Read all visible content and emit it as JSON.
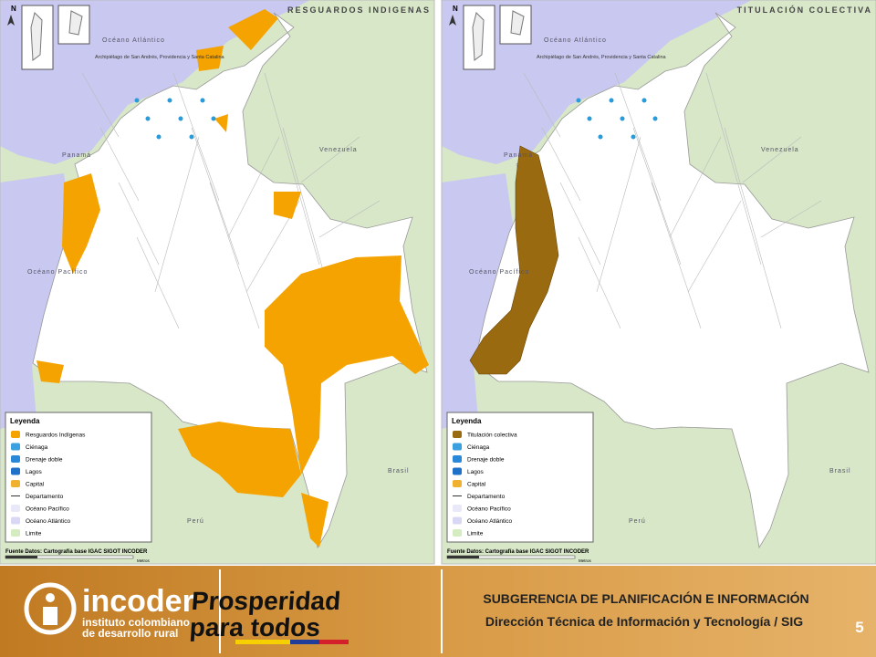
{
  "maps": [
    {
      "title": "RESGUARDOS INDIGENAS",
      "north": "N",
      "inset_caption": "Archipiélago de San Andrés, Providencia y Santa Catalina",
      "labels": [
        "Océano Atlántico",
        "Venezuela",
        "Panamá",
        "Océano Pacífico",
        "Brasil",
        "Perú"
      ],
      "legend": {
        "title": "Leyenda",
        "items": [
          "Resguardos Indígenas",
          "Ciénaga",
          "Drenaje doble",
          "Lagos",
          "Capital",
          "Departamento",
          "Océano Pacífico",
          "Océano Atlántico",
          "Limite"
        ]
      },
      "source": "Fuente Datos: Cartografía base IGAC SIGOT INCODER",
      "scale_unit": "Metros"
    },
    {
      "title": "TITULACIÓN COLECTIVA",
      "north": "N",
      "inset_caption": "Archipiélago de San Andrés, Providencia y Santa Catalina",
      "labels": [
        "Océano Atlántico",
        "Venezuela",
        "Panamá",
        "Océano Pacífico",
        "Brasil",
        "Perú"
      ],
      "legend": {
        "title": "Leyenda",
        "items": [
          "Titulación colectiva",
          "Ciénaga",
          "Drenaje doble",
          "Lagos",
          "Capital",
          "Departamento",
          "Océano Pacífico",
          "Océano Atlántico",
          "Limite"
        ]
      },
      "source": "Fuente Datos: Cartografía base IGAC SIGOT INCODER",
      "scale_unit": "Metros"
    }
  ],
  "footer": {
    "logo": "incoder",
    "logo_sub": "instituto colombiano de desarrollo rural",
    "slogan_line1": "Prosperidad",
    "slogan_line2": "para todos",
    "heading": "SUBGERENCIA DE PLANIFICACIÓN E INFORMACIÓN",
    "subheading": "Dirección Técnica de Información y Tecnología / SIG",
    "page_number": 5
  }
}
